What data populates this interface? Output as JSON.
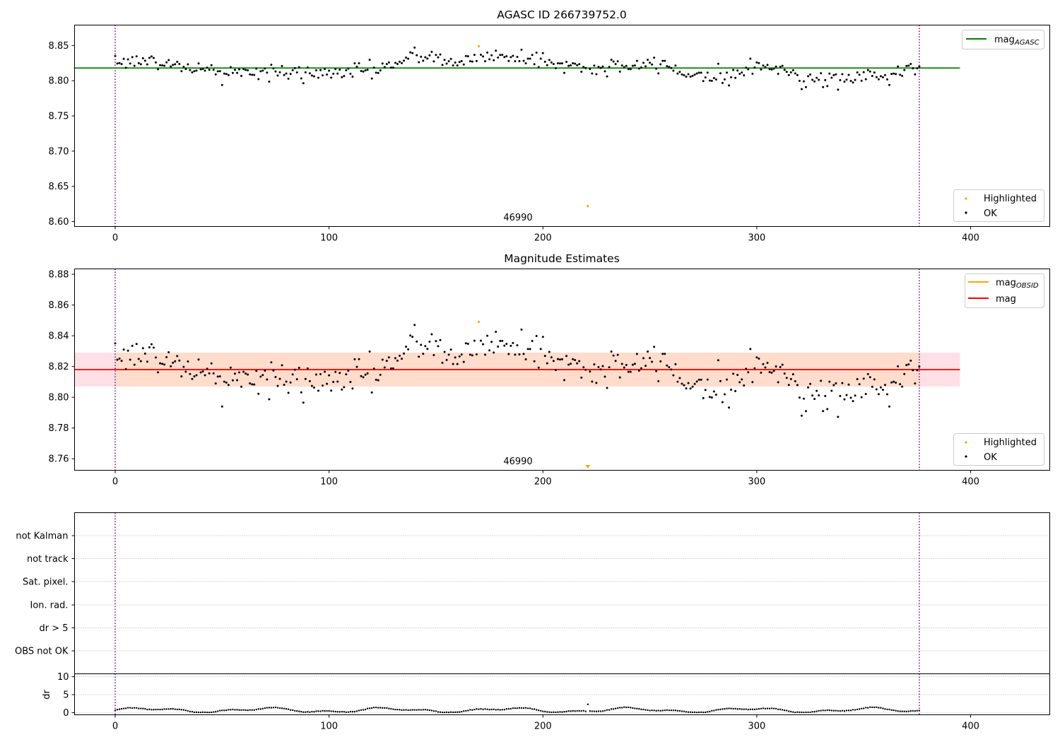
{
  "chart_data": [
    {
      "type": "scatter",
      "title": "AGASC ID 266739752.0",
      "xlim": [
        -19,
        437
      ],
      "ylim": [
        8.593,
        8.879
      ],
      "xticks": [
        0,
        100,
        200,
        300,
        400
      ],
      "yticks": [
        8.6,
        8.65,
        8.7,
        8.75,
        8.8,
        8.85
      ],
      "ytick_labels": [
        "8.60",
        "8.65",
        "8.70",
        "8.75",
        "8.80",
        "8.85"
      ],
      "hline": {
        "y": 8.818,
        "x_range": [
          -19,
          395
        ],
        "color": "#008000",
        "label": "mag",
        "label_sub": "AGASC"
      },
      "obsid_boundaries": [
        0,
        376
      ],
      "annotation": {
        "text": "46990",
        "x": 188,
        "y": 8.601
      },
      "highlighted": [
        {
          "x": 170,
          "y": 8.849
        },
        {
          "x": 221,
          "y": 8.622
        }
      ],
      "legend": {
        "upper": [
          "mag"
        ],
        "lower": [
          "Highlighted",
          "OK"
        ]
      }
    },
    {
      "type": "scatter",
      "title": "Magnitude Estimates",
      "xlim": [
        -19,
        437
      ],
      "ylim": [
        8.7525,
        8.8835
      ],
      "xticks": [
        0,
        100,
        200,
        300,
        400
      ],
      "yticks": [
        8.76,
        8.78,
        8.8,
        8.82,
        8.84,
        8.86,
        8.88
      ],
      "ytick_labels": [
        "8.76",
        "8.78",
        "8.80",
        "8.82",
        "8.84",
        "8.86",
        "8.88"
      ],
      "mean_line": {
        "y": 8.818,
        "x_range": [
          -19,
          395
        ],
        "color": "#ff0000",
        "label": "mag"
      },
      "obsid_line": {
        "y": 8.818,
        "x_range": [
          0,
          376
        ],
        "color": "#ffa500",
        "label": "mag",
        "label_sub": "OBSID"
      },
      "band_outer": {
        "y_range": [
          8.807,
          8.829
        ],
        "x_range": [
          -19,
          395
        ]
      },
      "band_inner": {
        "y_range": [
          8.807,
          8.829
        ],
        "x_range": [
          0,
          376
        ]
      },
      "obsid_boundaries": [
        0,
        376
      ],
      "annotation": {
        "text": "46990",
        "x": 188,
        "y": 8.7565
      },
      "highlighted": [
        {
          "x": 170,
          "y": 8.849
        }
      ],
      "highlighted_offscale": [
        {
          "x": 221
        }
      ],
      "legend": {
        "upper": [
          "mag",
          "mag"
        ],
        "lower": [
          "Highlighted",
          "OK"
        ]
      }
    },
    {
      "type": "table",
      "title": "",
      "rows": [
        "not Kalman",
        "not track",
        "Sat. pixel.",
        "Ion. rad.",
        "dr > 5",
        "OBS not OK"
      ],
      "flagged_points": [],
      "obsid_boundaries": [
        0,
        376
      ],
      "xlim": [
        -19,
        437
      ]
    },
    {
      "type": "scatter",
      "title": "",
      "ylabel": "dr",
      "xlim": [
        -19,
        437
      ],
      "ylim": [
        -0.6,
        10.8
      ],
      "xticks": [
        0,
        100,
        200,
        300,
        400
      ],
      "yticks": [
        0,
        5,
        10
      ],
      "ytick_labels": [
        "0",
        "5",
        "10"
      ],
      "obsid_boundaries": [
        0,
        376
      ],
      "series": "dr per sample index 0–376, mostly between 0 and 1.5, one point near 2.3 at index 221"
    }
  ],
  "x_tick_labels": [
    "0",
    "100",
    "200",
    "300",
    "400"
  ],
  "legend_labels": {
    "mag": "mag",
    "agasc_sub": "AGASC",
    "obsid_sub": "OBSID",
    "highlighted": "Highlighted",
    "ok": "OK"
  },
  "colors": {
    "ok": "#000000",
    "highlighted": "#ffa500",
    "agasc_line": "#008000",
    "mag_line": "#ff0000",
    "obsid_line": "#ffa500",
    "band_outer": "#ffe0e6",
    "band_inner": "#ffdccb",
    "boundary": "#800080",
    "grid": "#b0b0b0"
  }
}
